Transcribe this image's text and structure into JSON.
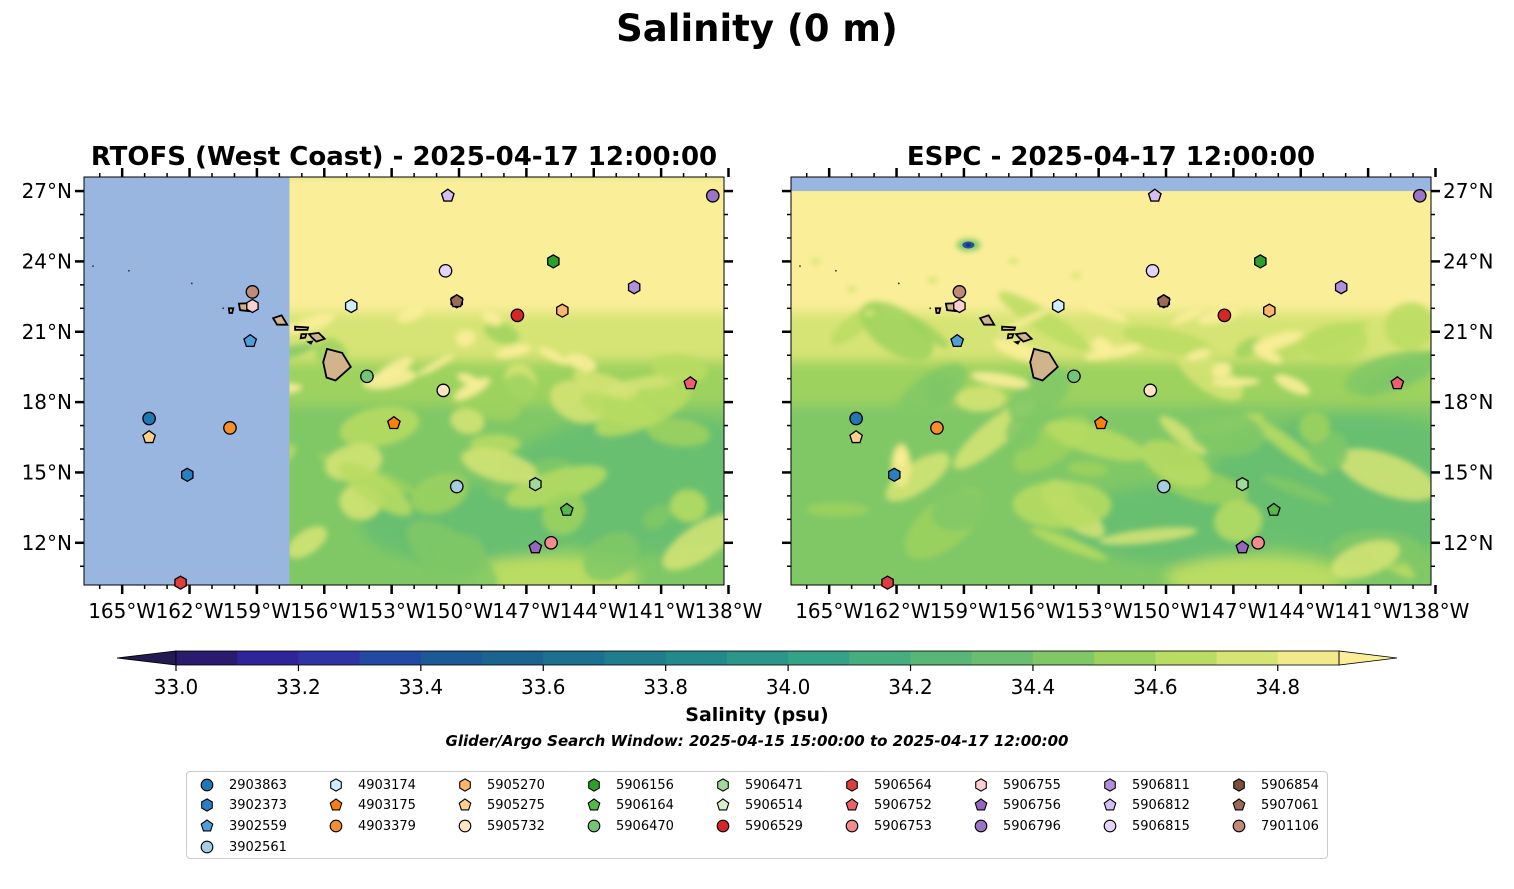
{
  "title": "Salinity (0 m)",
  "panels": [
    {
      "key": "left",
      "title": "RTOFS (West Coast) - 2025-04-17 12:00:00"
    },
    {
      "key": "right",
      "title": "ESPC - 2025-04-17 12:00:00"
    }
  ],
  "colors": {
    "land_fill": "#d2b48c",
    "no_data_fill": "#98b6e0",
    "marker_edge": "#000000"
  },
  "chart_data": {
    "type": "contour-map",
    "x_ticks": [
      -165,
      -162,
      -159,
      -156,
      -153,
      -150,
      -147,
      -144,
      -141,
      -138
    ],
    "x_tick_labels": [
      "165°W",
      "162°W",
      "159°W",
      "156°W",
      "153°W",
      "150°W",
      "147°W",
      "144°W",
      "141°W",
      "138°W"
    ],
    "y_ticks": [
      12,
      15,
      18,
      21,
      24,
      27
    ],
    "y_tick_labels": [
      "12°N",
      "15°N",
      "18°N",
      "21°N",
      "24°N",
      "27°N"
    ],
    "xlim": [
      -166.7,
      -138.2
    ],
    "ylim": [
      10.2,
      27.6
    ],
    "colorbar": {
      "label": "Salinity (psu)",
      "levels": [
        33.0,
        33.1,
        33.2,
        33.3,
        33.4,
        33.5,
        33.6,
        33.7,
        33.8,
        33.9,
        34.0,
        34.1,
        34.2,
        34.3,
        34.4,
        34.5,
        34.6,
        34.7,
        34.8,
        34.9
      ],
      "colors": [
        "#2a1b6f",
        "#30249a",
        "#2f34a4",
        "#234aa3",
        "#1d5996",
        "#1a6590",
        "#1c728e",
        "#1f7d8c",
        "#238a8b",
        "#2b968a",
        "#33a286",
        "#46ad7e",
        "#58b677",
        "#69bf6f",
        "#80c866",
        "#9dd25e",
        "#b9dc62",
        "#d6e474",
        "#f1ea8a"
      ],
      "under_color": "#221a52",
      "over_color": "#fbee99",
      "tick_values": [
        33.0,
        33.2,
        33.4,
        33.6,
        33.8,
        34.0,
        34.2,
        34.4,
        34.6,
        34.8
      ],
      "tick_labels": [
        "33.0",
        "33.2",
        "33.4",
        "33.6",
        "33.8",
        "34.0",
        "34.2",
        "34.4",
        "34.6",
        "34.8"
      ],
      "extend": "both"
    },
    "search_window": "Glider/Argo Search Window: 2025-04-15 15:00:00 to 2025-04-17 12:00:00",
    "legend_placement": "bottom-center",
    "floats": [
      {
        "id": "2903863",
        "marker": "circle",
        "color": "#1f77b4",
        "lon": -163.8,
        "lat": 17.3
      },
      {
        "id": "3902373",
        "marker": "hexagon",
        "color": "#2a7fc0",
        "lon": -162.1,
        "lat": 14.9
      },
      {
        "id": "3902559",
        "marker": "pentagon",
        "color": "#4f9ed8",
        "lon": -159.3,
        "lat": 20.6
      },
      {
        "id": "3902561",
        "marker": "circle",
        "color": "#a6cee3",
        "lon": -150.1,
        "lat": 14.4
      },
      {
        "id": "4903174",
        "marker": "hexagon",
        "color": "#cfeefb",
        "lon": -154.8,
        "lat": 22.1
      },
      {
        "id": "4903175",
        "marker": "pentagon",
        "color": "#ff7f0e",
        "lon": -152.9,
        "lat": 17.1
      },
      {
        "id": "4903379",
        "marker": "circle",
        "color": "#f68d2e",
        "lon": -160.2,
        "lat": 16.9
      },
      {
        "id": "5905270",
        "marker": "hexagon",
        "color": "#fdb46c",
        "lon": -145.4,
        "lat": 21.9
      },
      {
        "id": "5905275",
        "marker": "pentagon",
        "color": "#fdcf8f",
        "lon": -163.8,
        "lat": 16.5
      },
      {
        "id": "5905732",
        "marker": "circle",
        "color": "#fee5c2",
        "lon": -150.7,
        "lat": 18.5
      },
      {
        "id": "5906156",
        "marker": "hexagon",
        "color": "#2ca02c",
        "lon": -145.8,
        "lat": 24.0
      },
      {
        "id": "5906164",
        "marker": "pentagon",
        "color": "#54b948",
        "lon": -145.2,
        "lat": 13.4
      },
      {
        "id": "5906470",
        "marker": "circle",
        "color": "#74c476",
        "lon": -154.1,
        "lat": 19.1
      },
      {
        "id": "5906471",
        "marker": "hexagon",
        "color": "#a1d99b",
        "lon": -146.6,
        "lat": 14.5
      },
      {
        "id": "5906514",
        "marker": "pentagon",
        "color": "#d4f0c8",
        "lon": -150.5,
        "lat": 26.8
      },
      {
        "id": "5906529",
        "marker": "circle",
        "color": "#d62728",
        "lon": -147.4,
        "lat": 21.7
      },
      {
        "id": "5906564",
        "marker": "hexagon",
        "color": "#e03e3e",
        "lon": -162.4,
        "lat": 10.3
      },
      {
        "id": "5906752",
        "marker": "pentagon",
        "color": "#ee5f6a",
        "lon": -139.7,
        "lat": 18.8
      },
      {
        "id": "5906753",
        "marker": "circle",
        "color": "#f48b8d",
        "lon": -145.9,
        "lat": 12.0
      },
      {
        "id": "5906755",
        "marker": "hexagon",
        "color": "#fbd0d2",
        "lon": -159.2,
        "lat": 22.1
      },
      {
        "id": "5906756",
        "marker": "pentagon",
        "color": "#9467bd",
        "lon": -146.6,
        "lat": 11.8
      },
      {
        "id": "5906796",
        "marker": "circle",
        "color": "#9b74c7",
        "lon": -138.7,
        "lat": 26.8
      },
      {
        "id": "5906811",
        "marker": "hexagon",
        "color": "#b08fdc",
        "lon": -142.2,
        "lat": 22.9
      },
      {
        "id": "5906812",
        "marker": "pentagon",
        "color": "#d4bff2",
        "lon": -150.5,
        "lat": 26.8
      },
      {
        "id": "5906815",
        "marker": "circle",
        "color": "#e4d3fb",
        "lon": -150.6,
        "lat": 23.6
      },
      {
        "id": "5906854",
        "marker": "hexagon",
        "color": "#7b4f3b",
        "lon": -150.1,
        "lat": 22.3
      },
      {
        "id": "5907061",
        "marker": "pentagon",
        "color": "#9a6b56",
        "lon": -150.1,
        "lat": 22.3
      },
      {
        "id": "7901106",
        "marker": "circle",
        "color": "#c08a78",
        "lon": -159.2,
        "lat": 22.7
      }
    ]
  }
}
